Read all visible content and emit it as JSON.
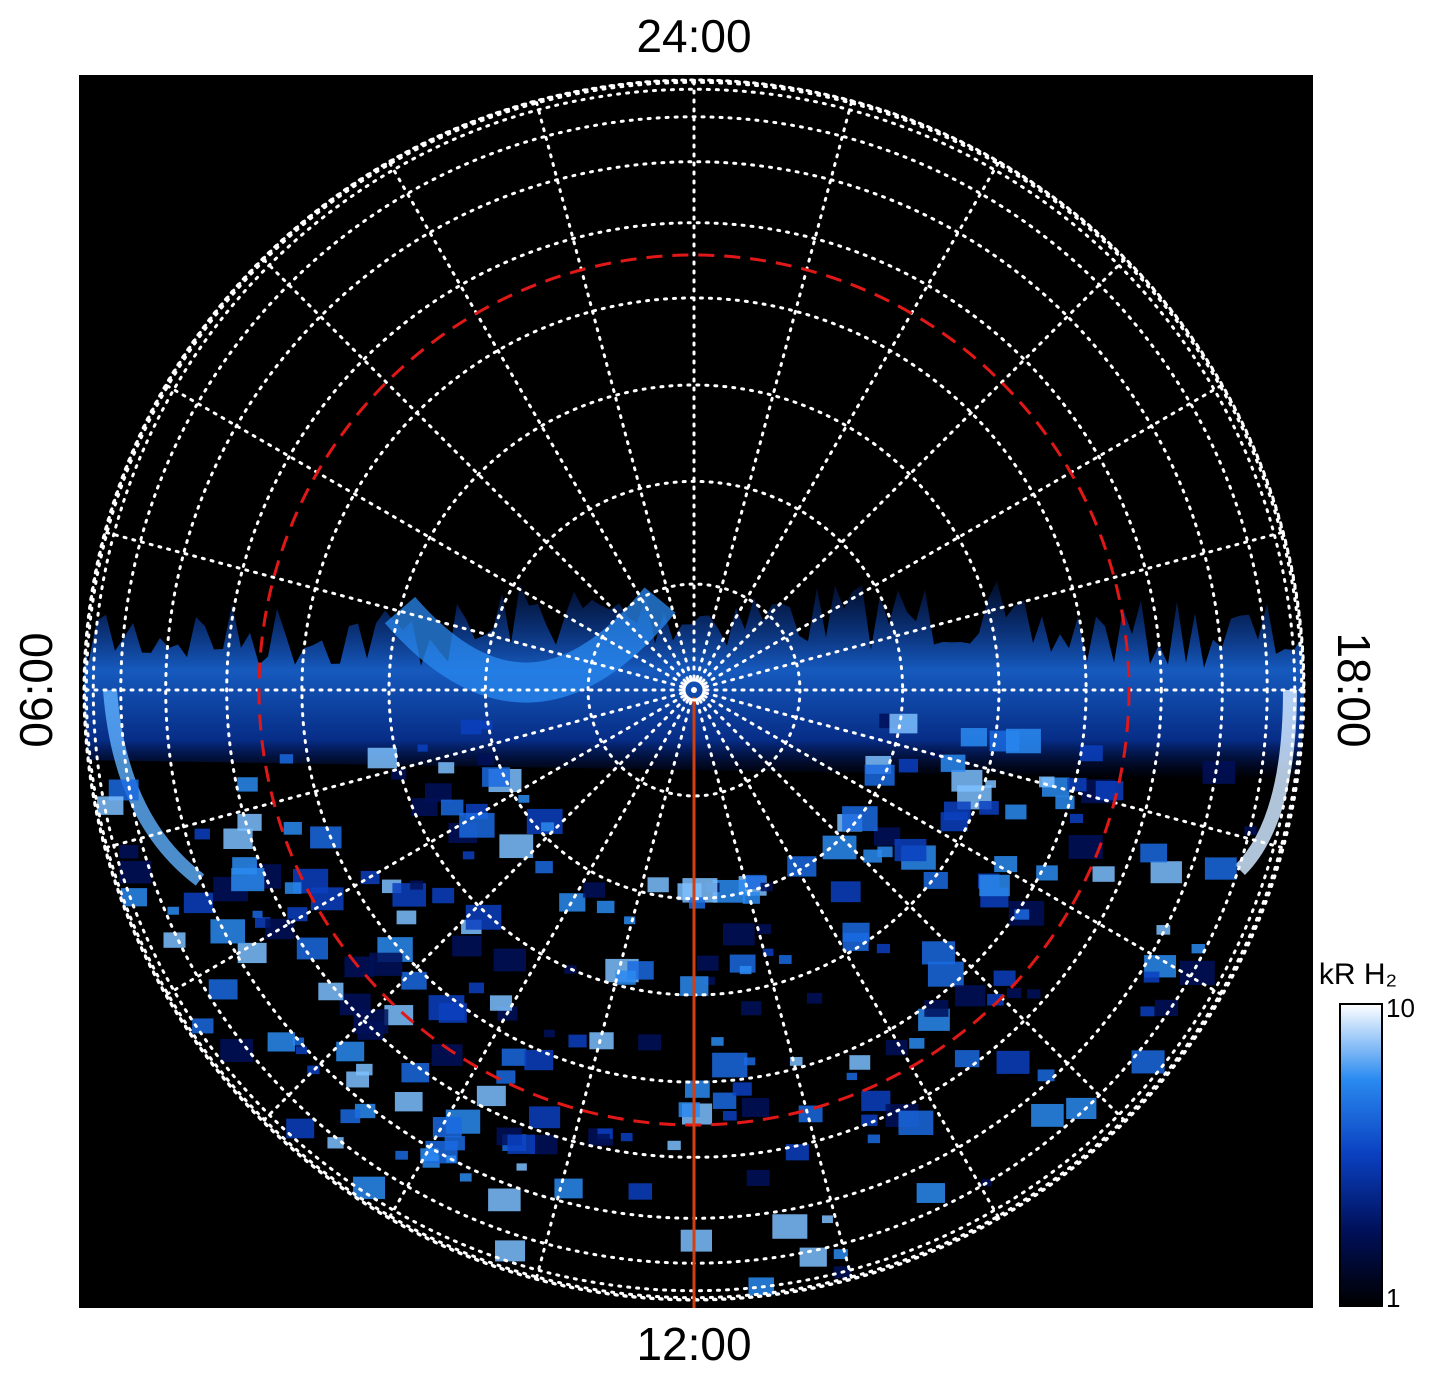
{
  "chart_data": {
    "type": "polar-image",
    "angular_labels": [
      "24:00",
      "06:00",
      "12:00",
      "18:00"
    ],
    "grid": true,
    "colorbar": {
      "label": "kR H₂",
      "lim": [
        1,
        10
      ],
      "ticks": [
        1,
        10
      ],
      "log": true,
      "colors": [
        "#000000",
        "#00105a",
        "#0a40c0",
        "#2a8af0",
        "#ffffff"
      ]
    }
  }
}
